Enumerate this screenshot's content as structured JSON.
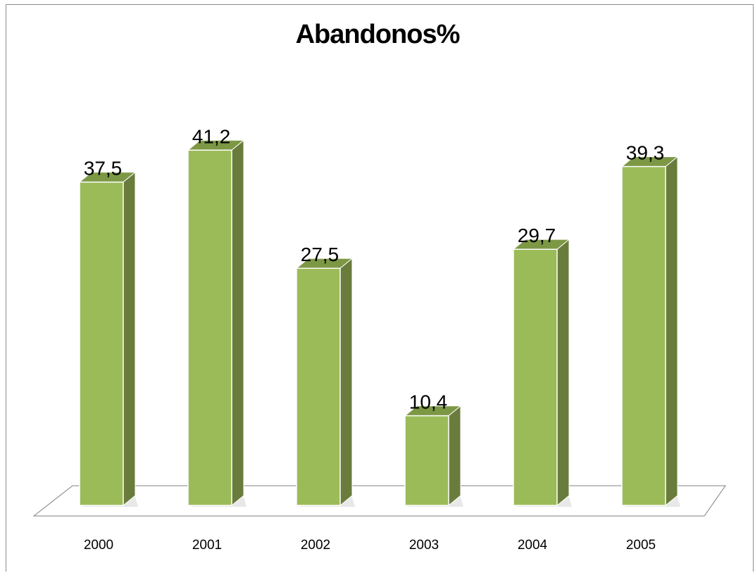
{
  "chart_data": {
    "type": "bar",
    "title": "Abandonos%",
    "categories": [
      "2000",
      "2001",
      "2002",
      "2003",
      "2004",
      "2005"
    ],
    "values": [
      37.5,
      41.2,
      27.5,
      10.4,
      29.7,
      39.3
    ],
    "value_labels": [
      "37,5",
      "41,2",
      "27,5",
      "10,4",
      "29,7",
      "39,3"
    ],
    "xlabel": "",
    "ylabel": "",
    "grid": false,
    "legend": "none",
    "style": "3d-column",
    "colors": {
      "front": "#9bbb59",
      "side": "#6a7c3c",
      "top": "#7d9845",
      "floor_stroke": "#7f7f7f"
    }
  }
}
